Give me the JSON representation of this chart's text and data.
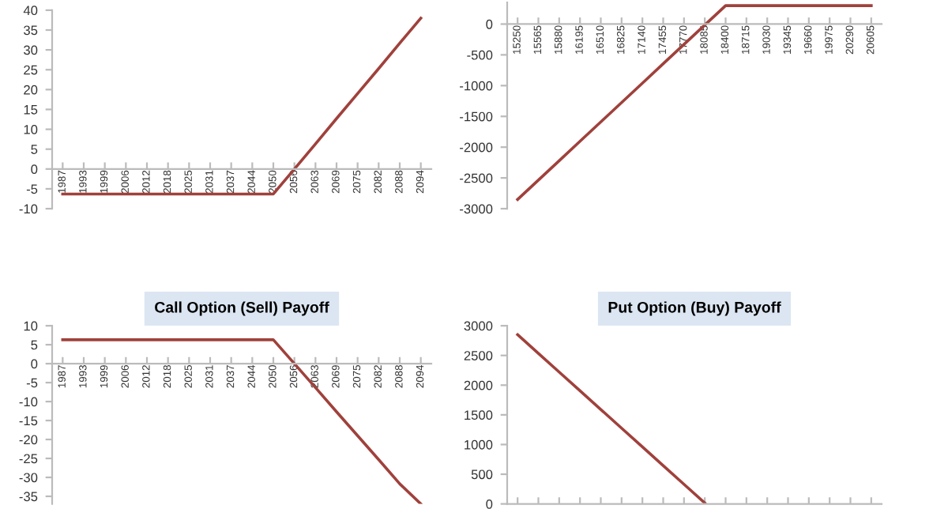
{
  "chart_data": [
    {
      "type": "line",
      "categories": [
        "1987",
        "1993",
        "1999",
        "2006",
        "2012",
        "2018",
        "2025",
        "2031",
        "2037",
        "2044",
        "2050",
        "2056",
        "2063",
        "2069",
        "2075",
        "2082",
        "2088",
        "2094"
      ],
      "series": [
        {
          "color": "#a0413c",
          "values": [
            -6.3,
            -6.3,
            -6.3,
            -6.3,
            -6.3,
            -6.3,
            -6.3,
            -6.3,
            -6.3,
            -6.3,
            -6.3,
            0,
            6.3,
            12.7,
            19,
            25.3,
            31.7,
            38
          ]
        }
      ],
      "ylim": [
        -10,
        40
      ],
      "yticks": [
        -10,
        -5,
        0,
        5,
        10,
        15,
        20,
        25,
        30,
        35,
        40
      ],
      "grid": false,
      "marker": "none",
      "line_style": "solid"
    },
    {
      "type": "line",
      "categories": [
        "15250",
        "15565",
        "15880",
        "16195",
        "16510",
        "16825",
        "17140",
        "17455",
        "17770",
        "18085",
        "18400",
        "18715",
        "19030",
        "19345",
        "19660",
        "19975",
        "20290",
        "20605"
      ],
      "series": [
        {
          "color": "#a0413c",
          "values": [
            -2850,
            -2535,
            -2220,
            -1905,
            -1590,
            -1275,
            -960,
            -645,
            -330,
            -15,
            300,
            300,
            300,
            300,
            300,
            300,
            300,
            300
          ]
        }
      ],
      "ylim": [
        -3000,
        350
      ],
      "yticks": [
        -3000,
        -2500,
        -2000,
        -1500,
        -1000,
        -500,
        0
      ],
      "grid": false,
      "marker": "none",
      "line_style": "solid"
    },
    {
      "type": "line",
      "title": "Call Option (Sell) Payoff",
      "categories": [
        "1987",
        "1993",
        "1999",
        "2006",
        "2012",
        "2018",
        "2025",
        "2031",
        "2037",
        "2044",
        "2050",
        "2056",
        "2063",
        "2069",
        "2075",
        "2082",
        "2088",
        "2094"
      ],
      "series": [
        {
          "color": "#a0413c",
          "values": [
            6.3,
            6.3,
            6.3,
            6.3,
            6.3,
            6.3,
            6.3,
            6.3,
            6.3,
            6.3,
            6.3,
            0,
            -6.3,
            -12.7,
            -19,
            -25.3,
            -31.7,
            -37
          ]
        }
      ],
      "ylim": [
        -37,
        10
      ],
      "yticks": [
        -35,
        -30,
        -25,
        -20,
        -15,
        -10,
        -5,
        0,
        5,
        10
      ],
      "grid": false,
      "marker": "none",
      "line_style": "solid"
    },
    {
      "type": "line",
      "title": "Put Option (Buy) Payoff",
      "categories": [
        null,
        null,
        null,
        null,
        null,
        null,
        null,
        null,
        null,
        null,
        null,
        null,
        null,
        null,
        null,
        null,
        null,
        null
      ],
      "series": [
        {
          "color": "#a0413c",
          "values": [
            2850,
            2535,
            2220,
            1905,
            1590,
            1275,
            960,
            645,
            330,
            15,
            null,
            null,
            null,
            null,
            null,
            null,
            null,
            null
          ]
        }
      ],
      "ylim": [
        0,
        3000
      ],
      "yticks": [
        0,
        500,
        1000,
        1500,
        2000,
        2500,
        3000
      ],
      "tick_labels": "y",
      "grid": false,
      "marker": "none",
      "line_style": "solid"
    }
  ]
}
